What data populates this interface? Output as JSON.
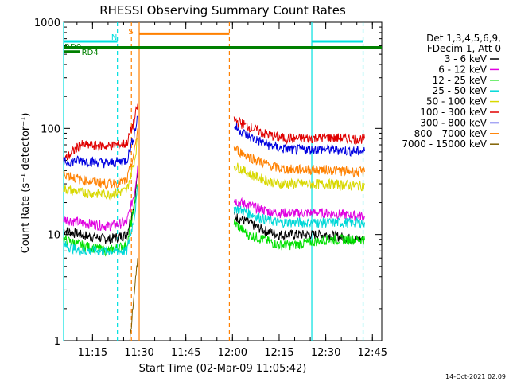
{
  "chart_data": {
    "type": "line",
    "title": "RHESSI Observing Summary Count Rates",
    "xlabel": "Start Time (02-Mar-09 11:05:42)",
    "ylabel": "Count Rate (s⁻¹ detector⁻¹)",
    "y_scale": "log",
    "ylim": [
      1,
      1000
    ],
    "y_ticks": [
      "1",
      "10",
      "100",
      "1000"
    ],
    "xlim": [
      "11:05:42",
      "12:48:00"
    ],
    "x_ticks": [
      "11:15",
      "11:30",
      "11:45",
      "12:00",
      "12:15",
      "12:30",
      "12:45"
    ],
    "footer": "14-Oct-2021 02:09",
    "legend": {
      "header": [
        "Det 1,3,4,5,6,9,",
        "FDecim 1, Att 0"
      ],
      "placement": "right",
      "entries": [
        {
          "label": "3 - 6 keV",
          "color": "#000000"
        },
        {
          "label": "6 - 12 keV",
          "color": "#e000e0"
        },
        {
          "label": "12 - 25 keV",
          "color": "#00e000"
        },
        {
          "label": "25 - 50 keV",
          "color": "#00d8d8"
        },
        {
          "label": "50 - 100 keV",
          "color": "#d8d800"
        },
        {
          "label": "100 - 300 keV",
          "color": "#e00000"
        },
        {
          "label": "300 - 800 keV",
          "color": "#0000e0"
        },
        {
          "label": "800 - 7000 keV",
          "color": "#ff8000"
        },
        {
          "label": "7000 - 15000 keV",
          "color": "#806000"
        }
      ]
    },
    "flags": [
      {
        "label": "RD0",
        "color": "#008000",
        "segments": [
          [
            "11:05:42",
            "12:48:00"
          ]
        ],
        "value": 580
      },
      {
        "label": "RD4",
        "color": "#008000",
        "segments": [
          [
            "11:05:42",
            "11:11:00"
          ]
        ],
        "value": 530
      },
      {
        "label": "N",
        "color": "#00e0e0",
        "segments": [
          [
            "11:05:42",
            "11:23:00"
          ],
          [
            "12:25:30",
            "12:42:00"
          ]
        ],
        "value": 660
      },
      {
        "label": "S",
        "color": "#ff8000",
        "segments": [
          [
            "11:30:00",
            "11:59:00"
          ]
        ],
        "value": 780
      }
    ],
    "vlines": [
      {
        "t": "11:05:42",
        "color": "#00e0e0",
        "style": "solid"
      },
      {
        "t": "11:23:00",
        "color": "#00e0e0",
        "style": "dashed"
      },
      {
        "t": "11:27:30",
        "color": "#ff8000",
        "style": "dashed"
      },
      {
        "t": "11:30:00",
        "color": "#ff8000",
        "style": "solid"
      },
      {
        "t": "11:59:00",
        "color": "#ff8000",
        "style": "dashed"
      },
      {
        "t": "12:25:30",
        "color": "#00e0e0",
        "style": "solid"
      },
      {
        "t": "12:42:00",
        "color": "#00e0e0",
        "style": "dashed"
      }
    ],
    "series": [
      {
        "name": "3 - 6 keV",
        "color": "#000000",
        "points": [
          [
            "11:05:42",
            11
          ],
          [
            "11:11:00",
            10
          ],
          [
            "11:20:00",
            9
          ],
          [
            "11:26:00",
            10
          ],
          [
            "11:28:30",
            20
          ],
          [
            "11:29:30",
            40
          ]
        ],
        "points2": [
          [
            "12:00:30",
            15
          ],
          [
            "12:05:00",
            13
          ],
          [
            "12:10:00",
            11
          ],
          [
            "12:15:00",
            10
          ],
          [
            "12:20:00",
            10
          ],
          [
            "12:30:00",
            10
          ],
          [
            "12:40:00",
            9
          ],
          [
            "12:42:30",
            9
          ]
        ]
      },
      {
        "name": "6 - 12 keV",
        "color": "#e000e0",
        "points": [
          [
            "11:05:42",
            14
          ],
          [
            "11:11:00",
            13
          ],
          [
            "11:20:00",
            12
          ],
          [
            "11:26:00",
            13
          ],
          [
            "11:28:30",
            25
          ],
          [
            "11:29:30",
            45
          ]
        ],
        "points2": [
          [
            "12:00:30",
            21
          ],
          [
            "12:05:00",
            19
          ],
          [
            "12:10:00",
            17
          ],
          [
            "12:15:00",
            16
          ],
          [
            "12:20:00",
            16
          ],
          [
            "12:30:00",
            16
          ],
          [
            "12:40:00",
            15
          ],
          [
            "12:42:30",
            15
          ]
        ]
      },
      {
        "name": "12 - 25 keV",
        "color": "#00e000",
        "points": [
          [
            "11:05:42",
            9
          ],
          [
            "11:11:00",
            8
          ],
          [
            "11:20:00",
            7
          ],
          [
            "11:26:00",
            8
          ],
          [
            "11:28:30",
            18
          ],
          [
            "11:29:30",
            30
          ]
        ],
        "points2": [
          [
            "12:00:30",
            13
          ],
          [
            "12:05:00",
            10
          ],
          [
            "12:10:00",
            9
          ],
          [
            "12:15:00",
            8
          ],
          [
            "12:20:00",
            8
          ],
          [
            "12:30:00",
            9
          ],
          [
            "12:40:00",
            9
          ],
          [
            "12:42:30",
            9
          ]
        ]
      },
      {
        "name": "25 - 50 keV",
        "color": "#00d8d8",
        "points": [
          [
            "11:05:42",
            8
          ],
          [
            "11:11:00",
            7
          ],
          [
            "11:20:00",
            7
          ],
          [
            "11:26:00",
            7
          ],
          [
            "11:28:30",
            15
          ],
          [
            "11:29:30",
            28
          ]
        ],
        "points2": [
          [
            "12:00:30",
            18
          ],
          [
            "12:05:00",
            16
          ],
          [
            "12:10:00",
            14
          ],
          [
            "12:15:00",
            13
          ],
          [
            "12:20:00",
            13
          ],
          [
            "12:30:00",
            13
          ],
          [
            "12:40:00",
            13
          ],
          [
            "12:42:30",
            13
          ]
        ]
      },
      {
        "name": "50 - 100 keV",
        "color": "#d8d800",
        "points": [
          [
            "11:05:42",
            27
          ],
          [
            "11:11:00",
            25
          ],
          [
            "11:20:00",
            24
          ],
          [
            "11:26:00",
            26
          ],
          [
            "11:28:30",
            50
          ],
          [
            "11:29:30",
            80
          ]
        ],
        "points2": [
          [
            "12:00:30",
            45
          ],
          [
            "12:05:00",
            38
          ],
          [
            "12:10:00",
            33
          ],
          [
            "12:15:00",
            30
          ],
          [
            "12:20:00",
            30
          ],
          [
            "12:30:00",
            30
          ],
          [
            "12:40:00",
            29
          ],
          [
            "12:42:30",
            29
          ]
        ]
      },
      {
        "name": "100 - 300 keV",
        "color": "#e00000",
        "points": [
          [
            "11:05:42",
            50
          ],
          [
            "11:11:00",
            70
          ],
          [
            "11:20:00",
            68
          ],
          [
            "11:26:00",
            72
          ],
          [
            "11:28:30",
            120
          ],
          [
            "11:29:30",
            170
          ]
        ],
        "points2": [
          [
            "12:00:30",
            120
          ],
          [
            "12:05:00",
            105
          ],
          [
            "12:10:00",
            90
          ],
          [
            "12:15:00",
            82
          ],
          [
            "12:20:00",
            80
          ],
          [
            "12:30:00",
            82
          ],
          [
            "12:40:00",
            80
          ],
          [
            "12:42:30",
            80
          ]
        ]
      },
      {
        "name": "300 - 800 keV",
        "color": "#0000e0",
        "points": [
          [
            "11:05:42",
            48
          ],
          [
            "11:11:00",
            50
          ],
          [
            "11:20:00",
            47
          ],
          [
            "11:26:00",
            50
          ],
          [
            "11:28:30",
            90
          ],
          [
            "11:29:30",
            130
          ]
        ],
        "points2": [
          [
            "12:00:30",
            105
          ],
          [
            "12:05:00",
            85
          ],
          [
            "12:10:00",
            73
          ],
          [
            "12:15:00",
            65
          ],
          [
            "12:20:00",
            63
          ],
          [
            "12:30:00",
            64
          ],
          [
            "12:40:00",
            61
          ],
          [
            "12:42:30",
            61
          ]
        ]
      },
      {
        "name": "800 - 7000 keV",
        "color": "#ff8000",
        "points": [
          [
            "11:05:42",
            38
          ],
          [
            "11:11:00",
            33
          ],
          [
            "11:20:00",
            30
          ],
          [
            "11:26:00",
            32
          ],
          [
            "11:28:30",
            60
          ],
          [
            "11:29:30",
            100
          ]
        ],
        "points2": [
          [
            "12:00:30",
            65
          ],
          [
            "12:05:00",
            55
          ],
          [
            "12:10:00",
            47
          ],
          [
            "12:15:00",
            42
          ],
          [
            "12:20:00",
            41
          ],
          [
            "12:30:00",
            41
          ],
          [
            "12:40:00",
            39
          ],
          [
            "12:42:30",
            39
          ]
        ]
      },
      {
        "name": "7000 - 15000 keV",
        "color": "#806000",
        "points": [
          [
            "11:27:00",
            1
          ],
          [
            "11:28:30",
            3
          ],
          [
            "11:29:30",
            6
          ]
        ],
        "points2": []
      }
    ]
  }
}
